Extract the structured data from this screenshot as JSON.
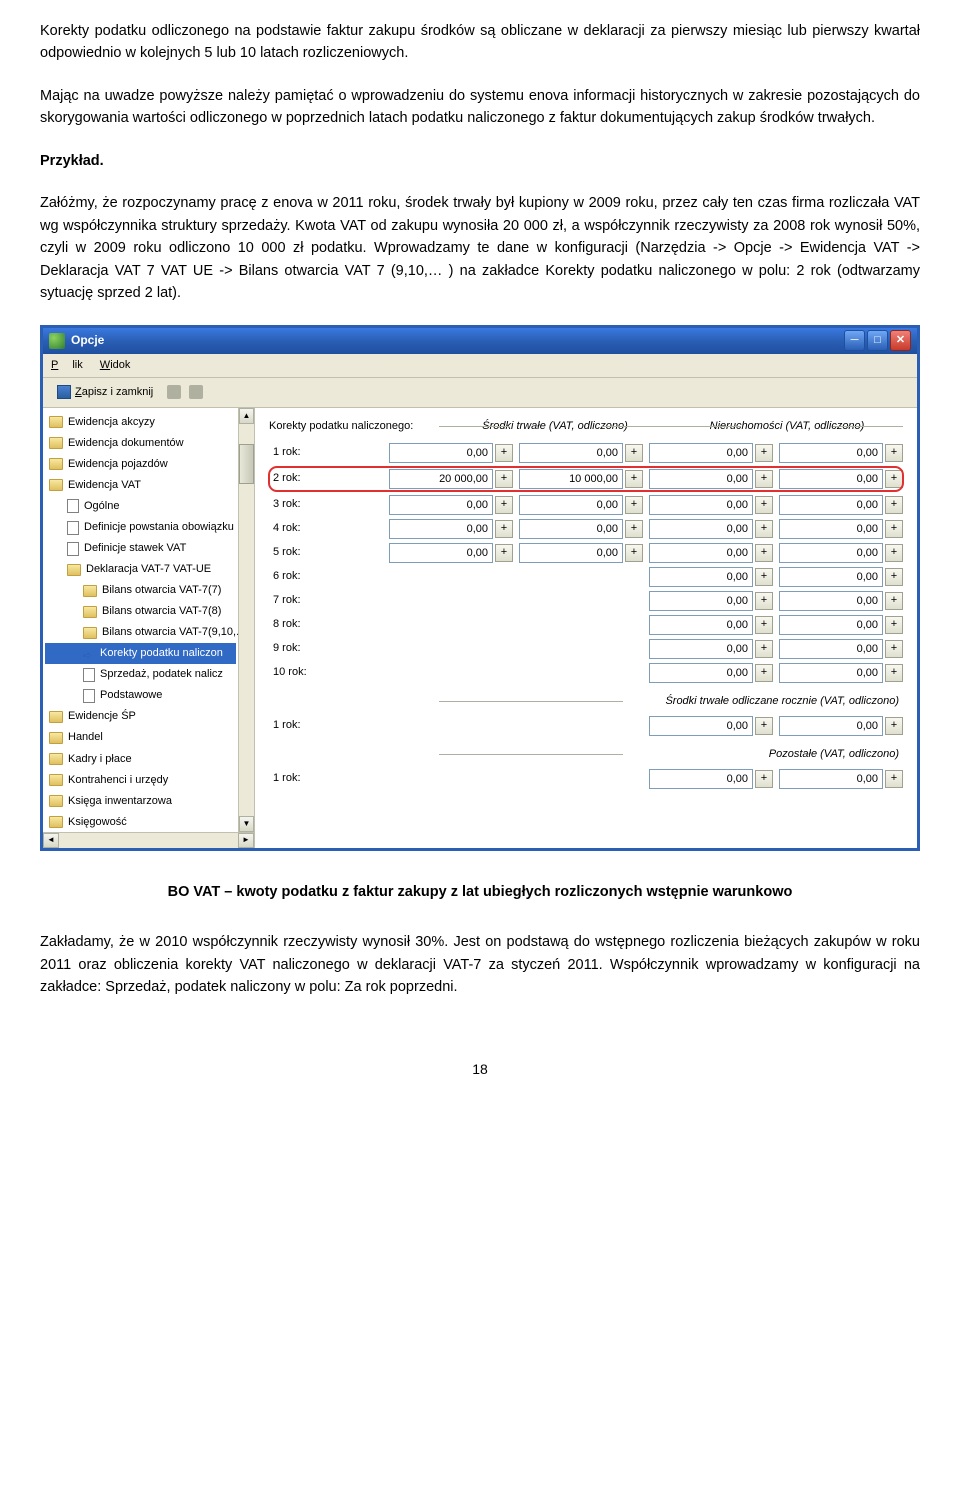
{
  "paragraphs": {
    "p1": "Korekty podatku odliczonego na podstawie faktur zakupu środków są obliczane w deklaracji za pierwszy miesiąc lub pierwszy kwartał odpowiednio w kolejnych 5 lub 10 latach rozliczeniowych.",
    "p2": "Mając na uwadze powyższe należy pamiętać o wprowadzeniu do systemu enova informacji historycznych w zakresie pozostających do skorygowania wartości odliczonego w poprzednich latach podatku naliczonego z faktur dokumentujących zakup środków trwałych.",
    "p3_label": "Przykład.",
    "p4": "Załóżmy, że rozpoczynamy pracę z enova w 2011 roku, środek trwały był kupiony w 2009 roku, przez cały ten czas firma rozliczała VAT wg współczynnika struktury sprzedaży. Kwota VAT od zakupu wynosiła 20 000 zł, a współczynnik rzeczywisty za 2008 rok wynosił 50%, czyli w 2009 roku odliczono 10 000 zł podatku. Wprowadzamy te dane w konfiguracji (Narzędzia -> Opcje -> Ewidencja VAT -> Deklaracja VAT 7 VAT UE -> Bilans otwarcia VAT 7 (9,10,… ) na zakładce Korekty podatku naliczonego w polu: 2 rok (odtwarzamy sytuację sprzed 2 lat).",
    "caption": "BO VAT – kwoty podatku z faktur zakupy z lat ubiegłych rozliczonych wstępnie warunkowo",
    "p5": "Zakładamy, że w 2010 współczynnik rzeczywisty wynosił 30%. Jest on podstawą do wstępnego rozliczenia bieżących zakupów w roku 2011 oraz obliczenia korekty VAT naliczonego w deklaracji VAT-7 za styczeń 2011. Współczynnik wprowadzamy w konfiguracji  na zakładce: Sprzedaż, podatek naliczony w polu: Za rok poprzedni."
  },
  "window": {
    "title": "Opcje",
    "menu": {
      "plik": "Plik",
      "widok": "Widok"
    },
    "toolbar": {
      "save": "Zapisz i zamknij"
    }
  },
  "tree": [
    {
      "label": "Ewidencja akcyzy",
      "level": 0,
      "icon": "folder"
    },
    {
      "label": "Ewidencja dokumentów",
      "level": 0,
      "icon": "folder"
    },
    {
      "label": "Ewidencja pojazdów",
      "level": 0,
      "icon": "folder"
    },
    {
      "label": "Ewidencja VAT",
      "level": 0,
      "icon": "folder"
    },
    {
      "label": "Ogólne",
      "level": 1,
      "icon": "doc"
    },
    {
      "label": "Definicje powstania obowiązku",
      "level": 1,
      "icon": "doc"
    },
    {
      "label": "Definicje stawek VAT",
      "level": 1,
      "icon": "doc"
    },
    {
      "label": "Deklaracja VAT-7 VAT-UE",
      "level": 1,
      "icon": "folder"
    },
    {
      "label": "Bilans otwarcia VAT-7(7)",
      "level": 2,
      "icon": "folder"
    },
    {
      "label": "Bilans otwarcia VAT-7(8)",
      "level": 2,
      "icon": "folder"
    },
    {
      "label": "Bilans otwarcia VAT-7(9,10,..",
      "level": 2,
      "icon": "folder"
    },
    {
      "label": "Korekty podatku naliczon",
      "level": 2,
      "icon": "arrow",
      "selected": true
    },
    {
      "label": "Sprzedaż, podatek nalicz",
      "level": 2,
      "icon": "doc"
    },
    {
      "label": "Podstawowe",
      "level": 2,
      "icon": "doc"
    },
    {
      "label": "Ewidencje ŚP",
      "level": 0,
      "icon": "folder"
    },
    {
      "label": "Handel",
      "level": 0,
      "icon": "folder"
    },
    {
      "label": "Kadry i płace",
      "level": 0,
      "icon": "folder"
    },
    {
      "label": "Kontrahenci i urzędy",
      "level": 0,
      "icon": "folder"
    },
    {
      "label": "Księga inwentarzowa",
      "level": 0,
      "icon": "folder"
    },
    {
      "label": "Księgowość",
      "level": 0,
      "icon": "folder"
    }
  ],
  "form": {
    "header_label": "Korekty podatku naliczonego:",
    "section1": "Środki trwałe (VAT, odliczono)",
    "section2": "Nieruchomości (VAT, odliczono)",
    "section3": "Środki trwałe odliczane rocznie (VAT, odliczono)",
    "section4": "Pozostałe (VAT, odliczono)",
    "rows_main": [
      {
        "label": "1 rok:",
        "v": [
          "0,00",
          "0,00",
          "0,00",
          "0,00"
        ]
      },
      {
        "label": "2 rok:",
        "v": [
          "20 000,00",
          "10 000,00",
          "0,00",
          "0,00"
        ],
        "highlight": true
      },
      {
        "label": "3 rok:",
        "v": [
          "0,00",
          "0,00",
          "0,00",
          "0,00"
        ]
      },
      {
        "label": "4 rok:",
        "v": [
          "0,00",
          "0,00",
          "0,00",
          "0,00"
        ]
      },
      {
        "label": "5 rok:",
        "v": [
          "0,00",
          "0,00",
          "0,00",
          "0,00"
        ]
      },
      {
        "label": "6 rok:",
        "v": [
          "",
          "",
          "0,00",
          "0,00"
        ]
      },
      {
        "label": "7 rok:",
        "v": [
          "",
          "",
          "0,00",
          "0,00"
        ]
      },
      {
        "label": "8 rok:",
        "v": [
          "",
          "",
          "0,00",
          "0,00"
        ]
      },
      {
        "label": "9 rok:",
        "v": [
          "",
          "",
          "0,00",
          "0,00"
        ]
      },
      {
        "label": "10 rok:",
        "v": [
          "",
          "",
          "0,00",
          "0,00"
        ]
      }
    ],
    "rows_sec3": [
      {
        "label": "1 rok:",
        "v": [
          "0,00",
          "0,00"
        ]
      }
    ],
    "rows_sec4": [
      {
        "label": "1 rok:",
        "v": [
          "0,00",
          "0,00"
        ]
      }
    ]
  },
  "page_number": "18"
}
